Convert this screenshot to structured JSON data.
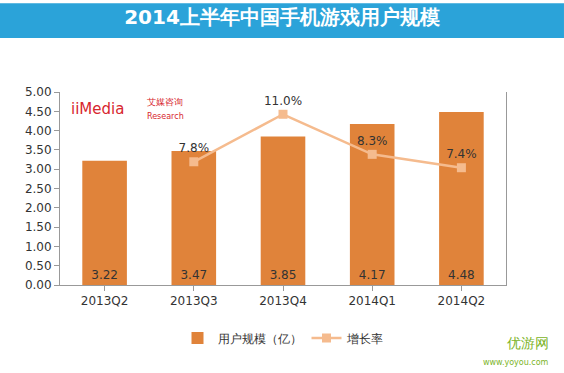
{
  "chart_data": {
    "type": "bar",
    "title": "2014上半年中国手机游戏用户规模",
    "categories": [
      "2013Q2",
      "2013Q3",
      "2013Q4",
      "2014Q1",
      "2014Q2"
    ],
    "series": [
      {
        "name": "用户规模（亿）",
        "type": "bar",
        "color": "#e0833a",
        "values": [
          3.22,
          3.47,
          3.85,
          4.17,
          4.48
        ]
      },
      {
        "name": "增长率",
        "type": "line",
        "axis": "y2",
        "color": "#f5bb8e",
        "marker": "square",
        "values": [
          null,
          7.8,
          11.0,
          8.3,
          7.4
        ],
        "value_labels": [
          null,
          "7.8%",
          "11.0%",
          "8.3%",
          "7.4%"
        ]
      }
    ],
    "ylim": [
      0,
      5
    ],
    "yticks": [
      {
        "value": 0,
        "label": "0.00"
      },
      {
        "value": 0.5,
        "label": "0.50"
      },
      {
        "value": 1,
        "label": "1.00"
      },
      {
        "value": 1.5,
        "label": "1.50"
      },
      {
        "value": 2,
        "label": "2.00"
      },
      {
        "value": 2.5,
        "label": "2.50"
      },
      {
        "value": 3,
        "label": "3.00"
      },
      {
        "value": 3.5,
        "label": "3.50"
      },
      {
        "value": 4,
        "label": "4.00"
      },
      {
        "value": 4.5,
        "label": "4.50"
      },
      {
        "value": 5,
        "label": "5.00"
      }
    ],
    "y2lim": [
      -0.5,
      12.5
    ],
    "y2ticks": [],
    "grid": false,
    "legend": "bottom",
    "data_labels": true,
    "annotations": [
      "iiMedia",
      "艾媒咨询",
      "Research",
      "优游网",
      "www.yoyou.com"
    ]
  }
}
